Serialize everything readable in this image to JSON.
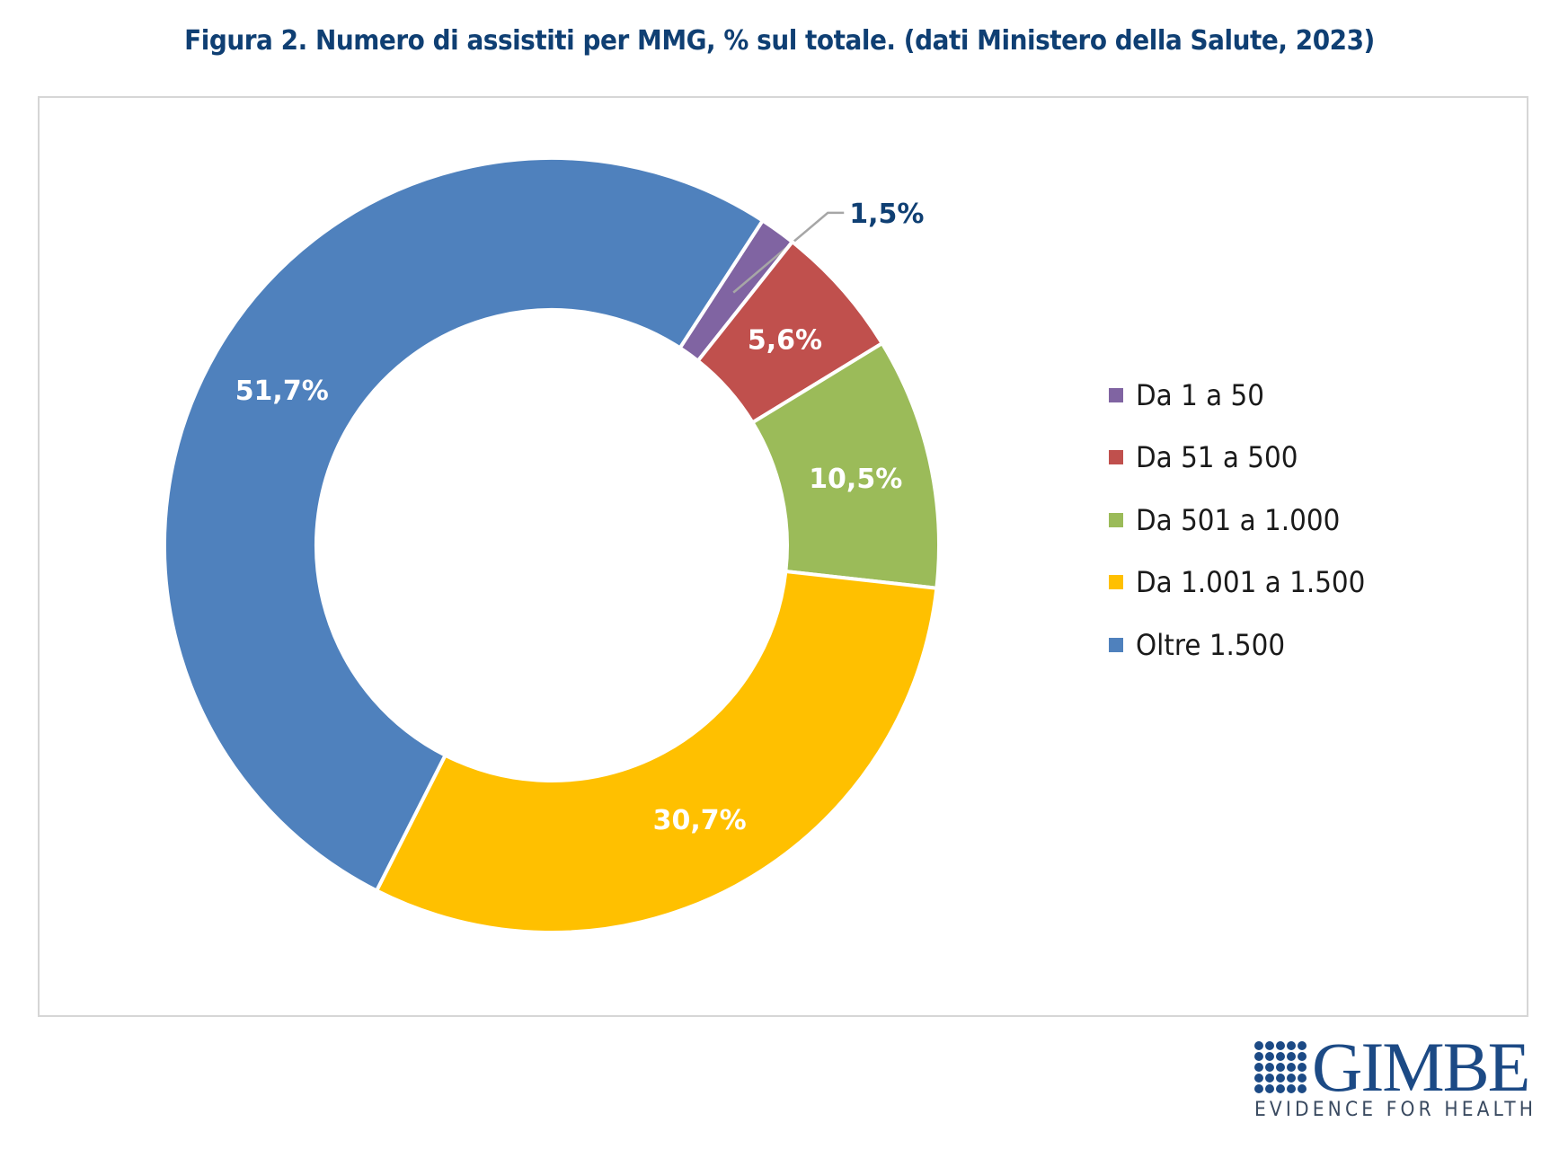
{
  "title": "Figura 2. Numero di assistiti per MMG, % sul totale. (dati Ministero della Salute, 2023)",
  "chart_data": {
    "type": "pie",
    "subtype": "donut",
    "title": "Figura 2. Numero di assistiti per MMG, % sul totale. (dati Ministero della Salute, 2023)",
    "categories": [
      "Da 1 a 50",
      "Da 51 a 500",
      "Da 501 a 1.000",
      "Da 1.001 a 1.500",
      "Oltre 1.500"
    ],
    "values": [
      1.5,
      5.6,
      10.5,
      30.7,
      51.7
    ],
    "labels": [
      "1,5%",
      "5,6%",
      "10,5%",
      "30,7%",
      "51,7%"
    ],
    "colors": [
      "#8064a2",
      "#c0504d",
      "#9bbb59",
      "#ffc000",
      "#4f81bd"
    ],
    "unit": "%",
    "legend_position": "right",
    "start_angle_deg": 33,
    "direction": "clockwise"
  },
  "legend": [
    {
      "label": "Da 1 a 50",
      "color": "#8064a2"
    },
    {
      "label": "Da 51 a 500",
      "color": "#c0504d"
    },
    {
      "label": "Da 501 a 1.000",
      "color": "#9bbb59"
    },
    {
      "label": "Da 1.001 a 1.500",
      "color": "#ffc000"
    },
    {
      "label": "Oltre 1.500",
      "color": "#4f81bd"
    }
  ],
  "logo": {
    "name": "GIMBE",
    "tagline": "EVIDENCE FOR HEALTH",
    "color": "#1c4a85"
  },
  "colors": {
    "title": "#0f3f73",
    "outside_label": "#0f3f73",
    "leader_line": "#a6a6a6"
  }
}
